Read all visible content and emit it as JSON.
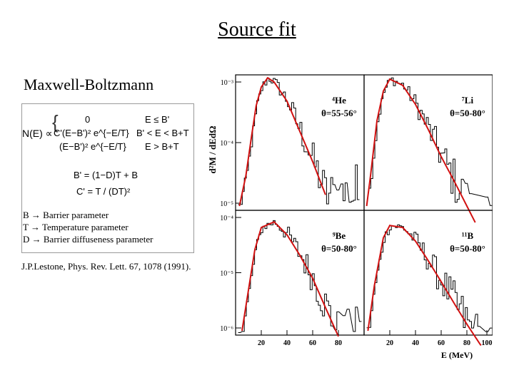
{
  "slide": {
    "title": "Source fit",
    "subtitle": "Maxwell-Boltzmann",
    "formula": {
      "lhs": "N(E) ∝",
      "case1_expr": "0",
      "case1_cond": "E ≤ B'",
      "case2_expr": "C'(E−B')² e^{−E/T}",
      "case2_cond": "B' < E < B+T",
      "case3_expr": "(E−B')² e^{−E/T}",
      "case3_cond": "E > B+T",
      "def1": "B' = (1−D)T + B",
      "def2": "C' = T / (DT)²"
    },
    "legend": [
      "B → Barrier parameter",
      "T → Temperature parameter",
      "D → Barrier diffuseness parameter"
    ],
    "citation": "J.P.Lestone, Phys. Rev. Lett. 67, 1078 (1991)."
  },
  "chart_data": {
    "type": "line",
    "ylabel": "d²M / dEdΩ",
    "xlabel": "E (MeV)",
    "yscale": "log",
    "xticks": [
      20,
      40,
      60,
      80
    ],
    "xticks_right": [
      20,
      40,
      60,
      80,
      100
    ],
    "panels": [
      {
        "isotope": "⁴He",
        "angle": "θ=55-56°",
        "ylim": [
          1e-05,
          0.001
        ],
        "yticks": [
          "10⁻³",
          "10⁻⁴",
          "10⁻⁵"
        ],
        "fit_x": [
          3,
          8,
          12,
          16,
          20,
          25,
          30,
          40,
          50,
          60,
          70
        ],
        "fit_y": [
          1e-05,
          3e-05,
          0.00011,
          0.00038,
          0.00075,
          0.00105,
          0.0009,
          0.00045,
          0.00015,
          5e-05,
          1.5e-05
        ]
      },
      {
        "isotope": "⁷Li",
        "angle": "θ=50-80°",
        "ylim": [
          1e-05,
          0.001
        ],
        "fit_x": [
          2,
          5,
          10,
          15,
          20,
          30,
          40,
          50,
          60,
          70,
          80,
          90
        ],
        "fit_y": [
          1e-05,
          3e-05,
          0.00022,
          0.00065,
          0.001,
          0.0008,
          0.0004,
          0.00016,
          6e-05,
          2.5e-05,
          1e-05,
          4e-06
        ]
      },
      {
        "isotope": "⁹Be",
        "angle": "θ=50-80°",
        "ylim": [
          1e-06,
          0.0001
        ],
        "yticks": [
          "10⁻⁴",
          "10⁻⁵",
          "10⁻⁶"
        ],
        "fit_x": [
          5,
          10,
          15,
          20,
          30,
          40,
          50,
          60,
          70,
          80
        ],
        "fit_y": [
          1e-06,
          5e-06,
          2.5e-05,
          6e-05,
          7.5e-05,
          4.5e-05,
          2e-05,
          8e-06,
          2.5e-06,
          8e-07
        ]
      },
      {
        "isotope": "¹¹B",
        "angle": "θ=50-80°",
        "ylim": [
          1e-06,
          0.0001
        ],
        "fit_x": [
          3,
          8,
          15,
          20,
          30,
          40,
          50,
          60,
          70,
          80,
          90,
          100
        ],
        "fit_y": [
          1e-06,
          6e-06,
          4e-05,
          6.5e-05,
          6e-05,
          3.5e-05,
          1.6e-05,
          7e-06,
          3e-06,
          1.3e-06,
          6e-07,
          3e-07
        ]
      }
    ]
  }
}
